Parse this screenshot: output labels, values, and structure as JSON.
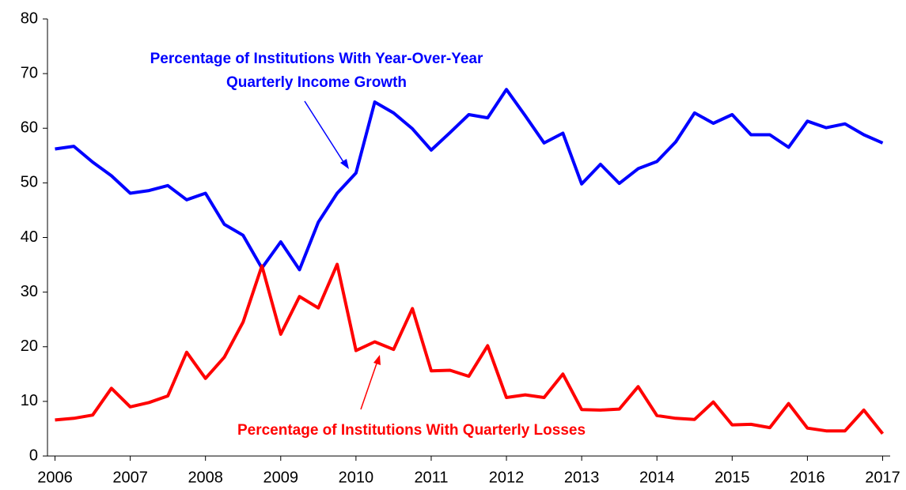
{
  "chart_data": {
    "type": "line",
    "x": [
      2006,
      2006.25,
      2006.5,
      2006.75,
      2007,
      2007.25,
      2007.5,
      2007.75,
      2008,
      2008.25,
      2008.5,
      2008.75,
      2009,
      2009.25,
      2009.5,
      2009.75,
      2010,
      2010.25,
      2010.5,
      2010.75,
      2011,
      2011.25,
      2011.5,
      2011.75,
      2012,
      2012.25,
      2012.5,
      2012.75,
      2013,
      2013.25,
      2013.5,
      2013.75,
      2014,
      2014.25,
      2014.5,
      2014.75,
      2015,
      2015.25,
      2015.5,
      2015.75,
      2016,
      2016.25,
      2016.5,
      2016.75,
      2017
    ],
    "series": [
      {
        "name": "Percentage of Institutions With Year-Over-Year Quarterly Income Growth",
        "color": "#0000ff",
        "values": [
          56.2,
          56.7,
          53.8,
          51.3,
          48.1,
          48.6,
          49.5,
          46.9,
          48.1,
          42.4,
          40.4,
          34.4,
          39.2,
          34.1,
          42.8,
          48.1,
          51.8,
          64.8,
          62.8,
          59.9,
          56.0,
          59.2,
          62.5,
          61.9,
          67.1,
          62.3,
          57.3,
          59.1,
          49.8,
          53.4,
          49.9,
          52.6,
          53.9,
          57.5,
          62.8,
          60.9,
          62.5,
          58.8,
          58.8,
          56.5,
          61.3,
          60.1,
          60.8,
          58.8,
          57.3
        ]
      },
      {
        "name": "Percentage of Institutions With Quarterly Losses",
        "color": "#ff0000",
        "values": [
          6.6,
          6.9,
          7.5,
          12.4,
          9.0,
          9.8,
          11.0,
          19.0,
          14.2,
          18.1,
          24.5,
          34.8,
          22.3,
          29.2,
          27.1,
          35.1,
          19.3,
          20.9,
          19.5,
          27.0,
          15.6,
          15.7,
          14.6,
          20.2,
          10.7,
          11.2,
          10.7,
          15.0,
          8.5,
          8.4,
          8.6,
          12.7,
          7.4,
          6.9,
          6.7,
          9.9,
          5.7,
          5.8,
          5.2,
          9.6,
          5.1,
          4.6,
          4.6,
          8.4,
          4.1
        ]
      }
    ],
    "xlim": [
      2005.9,
      2017.1
    ],
    "xticks": [
      2006,
      2007,
      2008,
      2009,
      2010,
      2011,
      2012,
      2013,
      2014,
      2015,
      2016,
      2017
    ],
    "ylim": [
      0,
      80
    ],
    "yticks": [
      0,
      10,
      20,
      30,
      40,
      50,
      60,
      70,
      80
    ],
    "annotations": [
      {
        "lines": [
          "Percentage of Institutions With Year-Over-Year",
          "Quarterly Income Growth"
        ],
        "color": "#0000ff"
      },
      {
        "lines": [
          "Percentage of Institutions With Quarterly Losses"
        ],
        "color": "#ff0000"
      }
    ]
  }
}
